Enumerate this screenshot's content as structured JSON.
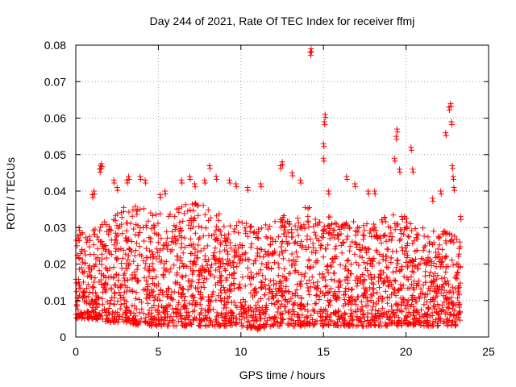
{
  "chart_data": {
    "type": "scatter",
    "title": "Day 244 of 2021, Rate Of TEC Index for receiver ffmj",
    "xlabel": "GPS time / hours",
    "ylabel": "ROTI / TECUs",
    "xlim": [
      0,
      25
    ],
    "ylim": [
      0,
      0.08
    ],
    "x_ticks": [
      0,
      5,
      10,
      15,
      20,
      25
    ],
    "x_tick_labels": [
      "0",
      "5",
      "10",
      "15",
      "20",
      "25"
    ],
    "y_ticks": [
      0,
      0.01,
      0.02,
      0.03,
      0.04,
      0.05,
      0.06,
      0.07,
      0.08
    ],
    "y_tick_labels": [
      "0",
      "0.01",
      "0.02",
      "0.03",
      "0.04",
      "0.05",
      "0.06",
      "0.07",
      "0.08"
    ],
    "grid": true,
    "marker": "+",
    "marker_color": "#ff0000",
    "x_range_of_data": [
      0,
      23.3
    ],
    "typical_band": [
      0.003,
      0.025
    ],
    "envelope": [
      {
        "x": 0.0,
        "low": 0.005,
        "high": 0.028
      },
      {
        "x": 1.0,
        "low": 0.005,
        "high": 0.03
      },
      {
        "x": 2.0,
        "low": 0.004,
        "high": 0.034
      },
      {
        "x": 3.0,
        "low": 0.004,
        "high": 0.036
      },
      {
        "x": 4.0,
        "low": 0.003,
        "high": 0.036
      },
      {
        "x": 5.0,
        "low": 0.003,
        "high": 0.034
      },
      {
        "x": 6.0,
        "low": 0.003,
        "high": 0.035
      },
      {
        "x": 7.0,
        "low": 0.003,
        "high": 0.037
      },
      {
        "x": 8.0,
        "low": 0.003,
        "high": 0.036
      },
      {
        "x": 9.0,
        "low": 0.003,
        "high": 0.033
      },
      {
        "x": 10.0,
        "low": 0.003,
        "high": 0.032
      },
      {
        "x": 11.0,
        "low": 0.002,
        "high": 0.03
      },
      {
        "x": 12.0,
        "low": 0.003,
        "high": 0.034
      },
      {
        "x": 13.0,
        "low": 0.003,
        "high": 0.033
      },
      {
        "x": 14.0,
        "low": 0.003,
        "high": 0.036
      },
      {
        "x": 15.0,
        "low": 0.003,
        "high": 0.035
      },
      {
        "x": 16.0,
        "low": 0.003,
        "high": 0.031
      },
      {
        "x": 17.0,
        "low": 0.003,
        "high": 0.032
      },
      {
        "x": 18.0,
        "low": 0.003,
        "high": 0.031
      },
      {
        "x": 19.0,
        "low": 0.003,
        "high": 0.034
      },
      {
        "x": 20.0,
        "low": 0.003,
        "high": 0.033
      },
      {
        "x": 21.0,
        "low": 0.003,
        "high": 0.03
      },
      {
        "x": 22.0,
        "low": 0.003,
        "high": 0.029
      },
      {
        "x": 23.0,
        "low": 0.003,
        "high": 0.03
      },
      {
        "x": 23.3,
        "low": 0.004,
        "high": 0.026
      }
    ],
    "outliers": [
      {
        "x": 0.2,
        "y": 0.03
      },
      {
        "x": 1.0,
        "y": 0.039
      },
      {
        "x": 1.1,
        "y": 0.04
      },
      {
        "x": 1.45,
        "y": 0.046
      },
      {
        "x": 1.5,
        "y": 0.047
      },
      {
        "x": 1.55,
        "y": 0.0475
      },
      {
        "x": 2.3,
        "y": 0.043
      },
      {
        "x": 2.5,
        "y": 0.041
      },
      {
        "x": 3.1,
        "y": 0.043
      },
      {
        "x": 3.2,
        "y": 0.044
      },
      {
        "x": 3.9,
        "y": 0.044
      },
      {
        "x": 4.2,
        "y": 0.043
      },
      {
        "x": 5.1,
        "y": 0.039
      },
      {
        "x": 5.4,
        "y": 0.04
      },
      {
        "x": 6.4,
        "y": 0.043
      },
      {
        "x": 6.9,
        "y": 0.044
      },
      {
        "x": 7.2,
        "y": 0.042
      },
      {
        "x": 7.8,
        "y": 0.043
      },
      {
        "x": 8.1,
        "y": 0.047
      },
      {
        "x": 8.5,
        "y": 0.044
      },
      {
        "x": 9.3,
        "y": 0.043
      },
      {
        "x": 9.7,
        "y": 0.042
      },
      {
        "x": 10.4,
        "y": 0.041
      },
      {
        "x": 11.2,
        "y": 0.042
      },
      {
        "x": 12.4,
        "y": 0.047
      },
      {
        "x": 12.5,
        "y": 0.048
      },
      {
        "x": 13.1,
        "y": 0.045
      },
      {
        "x": 13.6,
        "y": 0.043
      },
      {
        "x": 14.2,
        "y": 0.078
      },
      {
        "x": 14.25,
        "y": 0.079
      },
      {
        "x": 15.0,
        "y": 0.053
      },
      {
        "x": 15.05,
        "y": 0.059
      },
      {
        "x": 15.1,
        "y": 0.061
      },
      {
        "x": 15.0,
        "y": 0.049
      },
      {
        "x": 15.3,
        "y": 0.04
      },
      {
        "x": 16.4,
        "y": 0.044
      },
      {
        "x": 16.9,
        "y": 0.042
      },
      {
        "x": 17.7,
        "y": 0.04
      },
      {
        "x": 18.1,
        "y": 0.04
      },
      {
        "x": 19.4,
        "y": 0.055
      },
      {
        "x": 19.45,
        "y": 0.057
      },
      {
        "x": 19.3,
        "y": 0.049
      },
      {
        "x": 19.6,
        "y": 0.046
      },
      {
        "x": 20.3,
        "y": 0.052
      },
      {
        "x": 20.4,
        "y": 0.046
      },
      {
        "x": 21.6,
        "y": 0.038
      },
      {
        "x": 22.1,
        "y": 0.04
      },
      {
        "x": 22.4,
        "y": 0.056
      },
      {
        "x": 22.6,
        "y": 0.063
      },
      {
        "x": 22.7,
        "y": 0.064
      },
      {
        "x": 22.75,
        "y": 0.059
      },
      {
        "x": 22.8,
        "y": 0.047
      },
      {
        "x": 22.85,
        "y": 0.044
      },
      {
        "x": 22.9,
        "y": 0.041
      },
      {
        "x": 23.3,
        "y": 0.033
      }
    ],
    "sample_count": 2600
  }
}
